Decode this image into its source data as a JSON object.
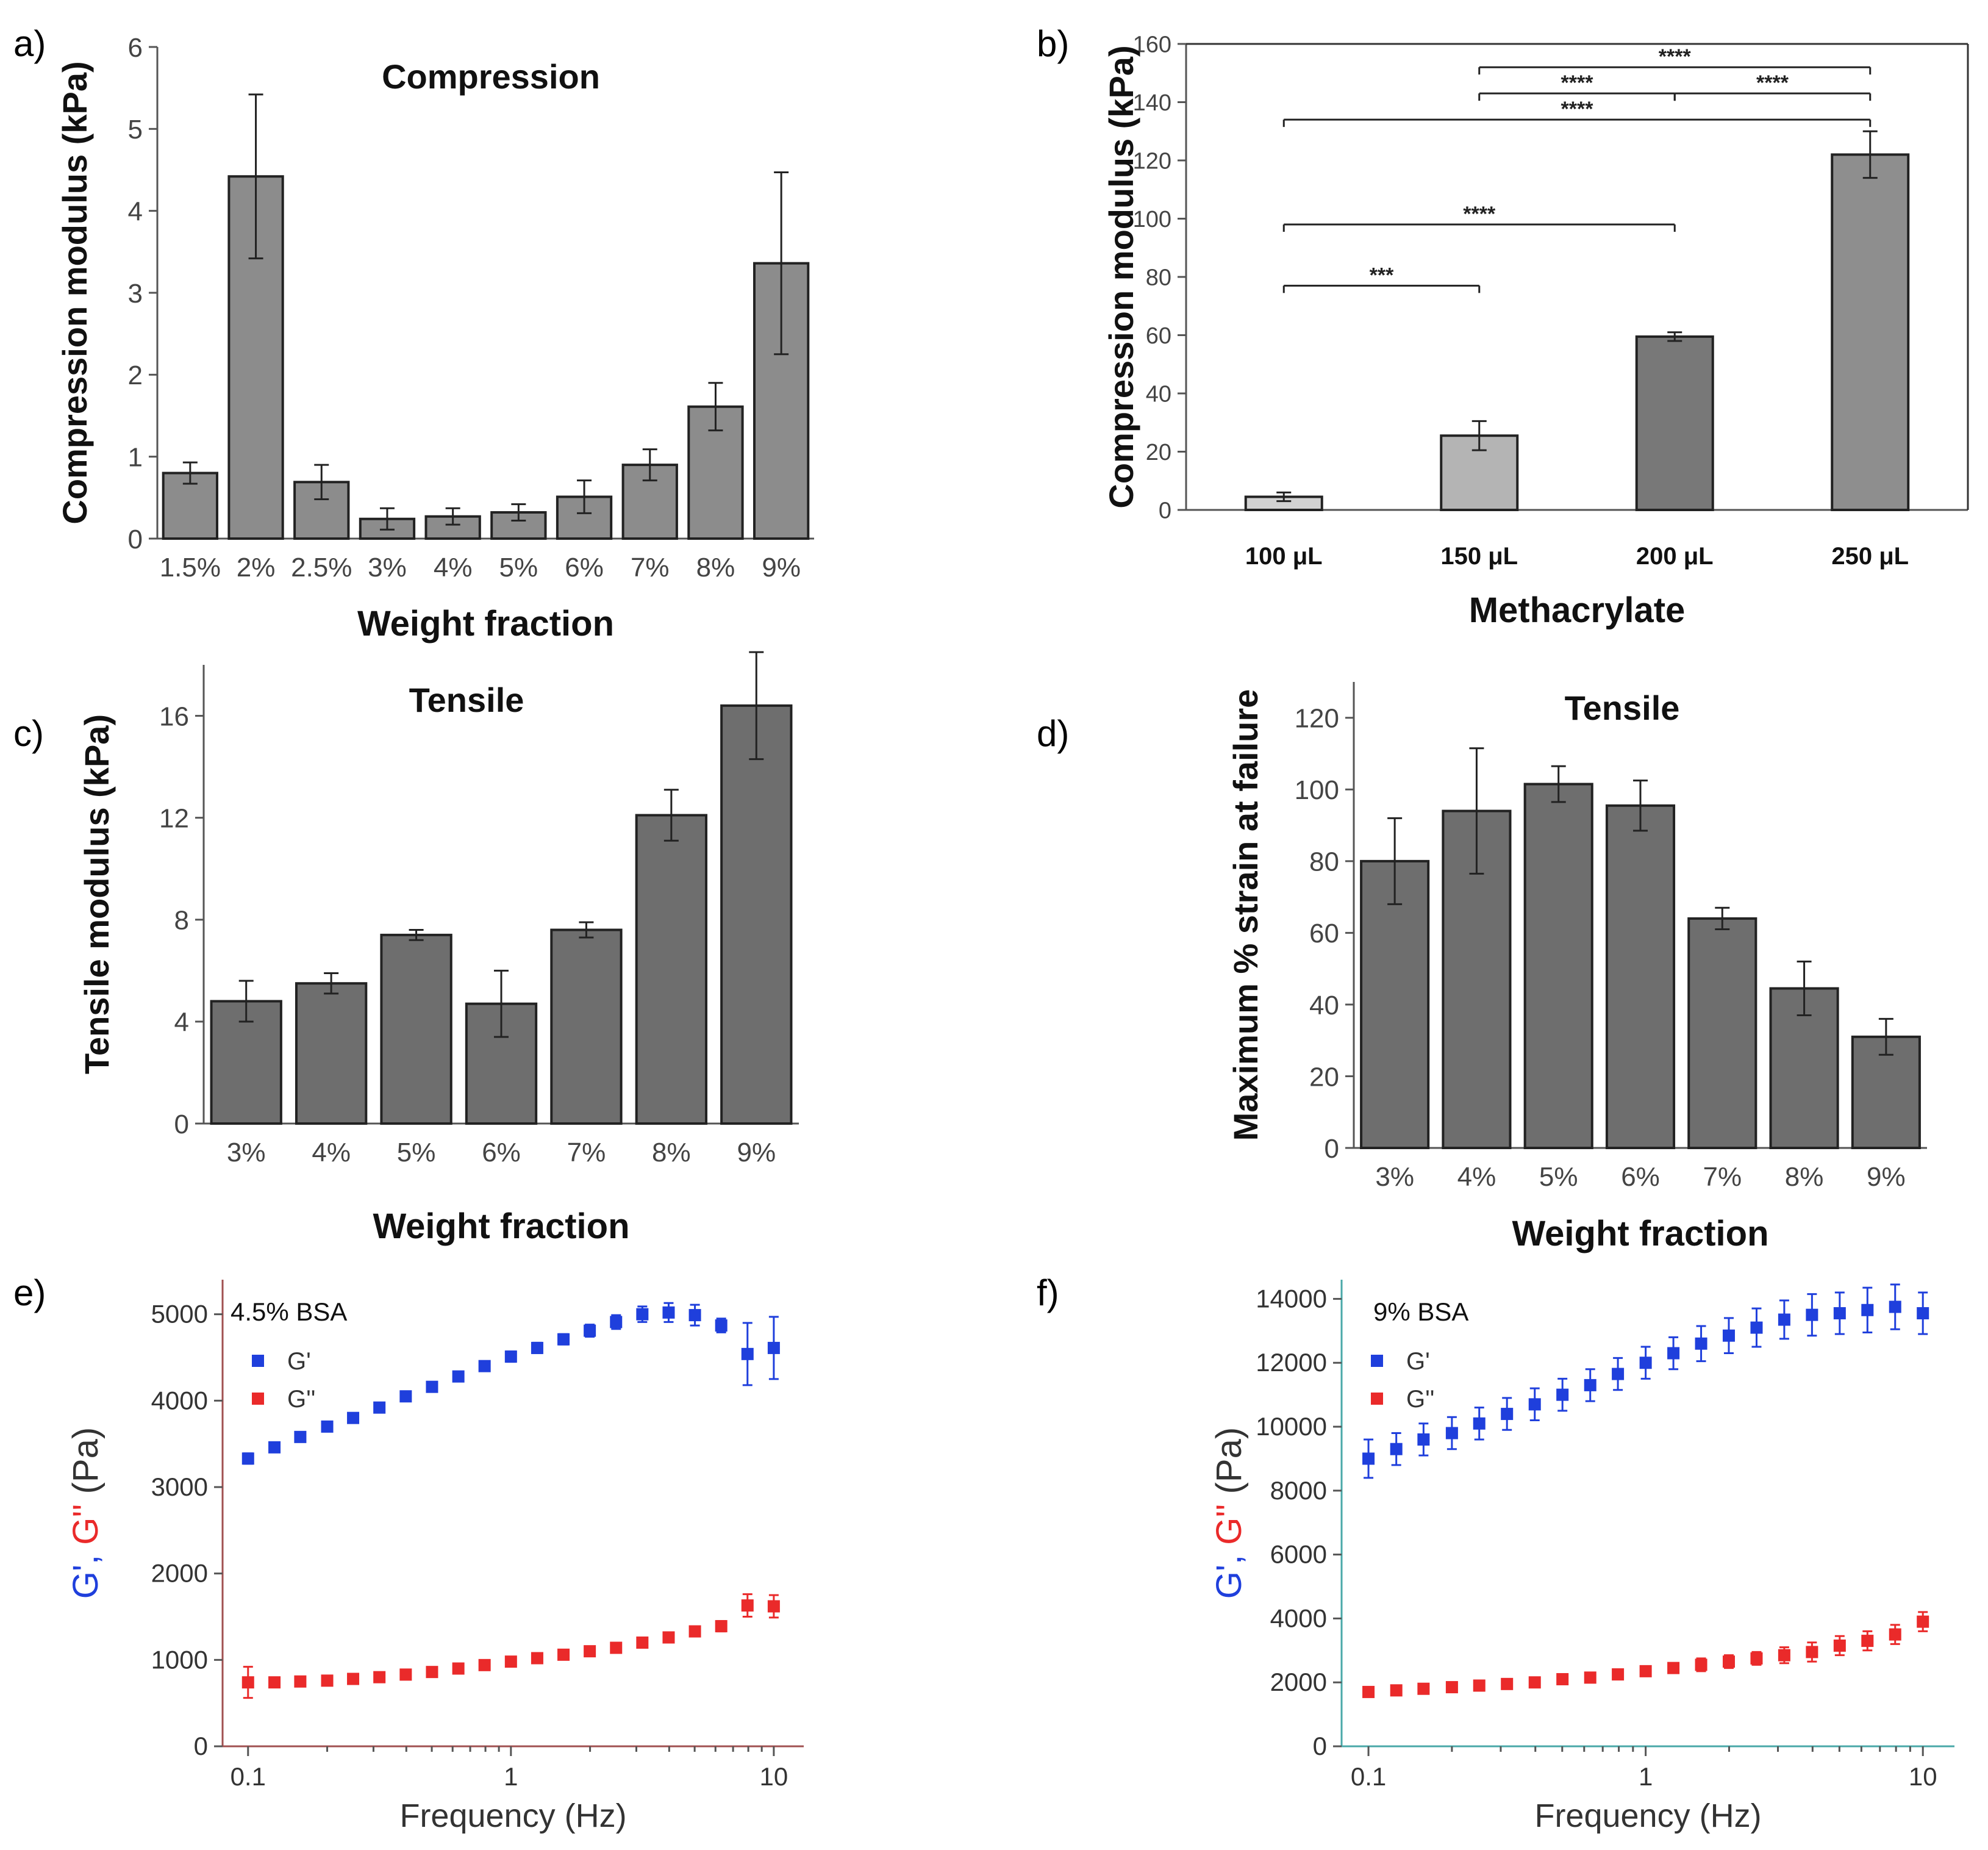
{
  "chart_data": [
    {
      "panel": "a)",
      "type": "bar",
      "title": "Compression",
      "xlabel": "Weight fraction",
      "ylabel": "Compression modulus (kPa)",
      "ylim": [
        0,
        6
      ],
      "yticks": [
        "0",
        "1",
        "2",
        "3",
        "4",
        "5",
        "6"
      ],
      "categories": [
        "1.5%",
        "2%",
        "2.5%",
        "3%",
        "4%",
        "5%",
        "6%",
        "7%",
        "8%",
        "9%"
      ],
      "values": [
        0.8,
        4.42,
        0.69,
        0.24,
        0.27,
        0.32,
        0.51,
        0.9,
        1.61,
        3.36
      ],
      "errors": [
        0.13,
        1.0,
        0.21,
        0.13,
        0.1,
        0.1,
        0.2,
        0.19,
        0.29,
        1.11
      ],
      "bar_color": "#8c8c8c"
    },
    {
      "panel": "b)",
      "type": "bar",
      "title": "",
      "xlabel": "Methacrylate",
      "ylabel": "Compression modulus (kPa)",
      "ylim": [
        0,
        160
      ],
      "yticks": [
        "0",
        "20",
        "40",
        "60",
        "80",
        "100",
        "120",
        "140",
        "160"
      ],
      "categories": [
        "100 μL",
        "150 μL",
        "200 μL",
        "250 μL"
      ],
      "values": [
        4.5,
        25.5,
        59.5,
        122.0
      ],
      "errors": [
        1.5,
        5.0,
        1.5,
        8.0
      ],
      "bar_colors": [
        "#d2d2d2",
        "#b4b4b4",
        "#787878",
        "#8e8e8e"
      ],
      "significance": [
        {
          "from": 0,
          "to": 1,
          "y": 77,
          "label": "***"
        },
        {
          "from": 0,
          "to": 2,
          "y": 98,
          "label": "****"
        },
        {
          "from": 0,
          "to": 3,
          "y": 134,
          "label": "****"
        },
        {
          "from": 1,
          "to": 2,
          "y": 143,
          "label": "****"
        },
        {
          "from": 2,
          "to": 3,
          "y": 143,
          "label": "****"
        },
        {
          "from": 1,
          "to": 3,
          "y": 152,
          "label": "****"
        }
      ]
    },
    {
      "panel": "c)",
      "type": "bar",
      "title": "Tensile",
      "xlabel": "Weight fraction",
      "ylabel": "Tensile modulus (kPa)",
      "ylim": [
        0,
        18
      ],
      "yticks": [
        "0",
        "4",
        "8",
        "12",
        "16"
      ],
      "categories": [
        "3%",
        "4%",
        "5%",
        "6%",
        "7%",
        "8%",
        "9%"
      ],
      "values": [
        4.8,
        5.5,
        7.4,
        4.7,
        7.6,
        12.1,
        16.4
      ],
      "errors": [
        0.8,
        0.4,
        0.2,
        1.3,
        0.3,
        1.0,
        2.1
      ],
      "bar_color": "#6e6e6e"
    },
    {
      "panel": "d)",
      "type": "bar",
      "title": "Tensile",
      "xlabel": "Weight fraction",
      "ylabel": "Maximum % strain at failure",
      "ylim": [
        0,
        130
      ],
      "yticks": [
        "0",
        "20",
        "40",
        "60",
        "80",
        "100",
        "120"
      ],
      "categories": [
        "3%",
        "4%",
        "5%",
        "6%",
        "7%",
        "8%",
        "9%"
      ],
      "values": [
        80,
        94,
        101.5,
        95.5,
        64,
        44.5,
        31
      ],
      "errors": [
        12,
        17.5,
        5,
        7,
        3,
        7.5,
        5
      ],
      "bar_color": "#6e6e6e"
    },
    {
      "panel": "e)",
      "type": "scatter",
      "title": "4.5% BSA",
      "xlabel": "Frequency (Hz)",
      "ylabel_parts": [
        "G'",
        ", ",
        "G''",
        " (Pa)"
      ],
      "xscale": "log",
      "xlim": [
        0.08,
        13
      ],
      "ylim": [
        0,
        5400
      ],
      "xticks": [
        "0.1",
        "1",
        "10"
      ],
      "yticks": [
        "0",
        "1000",
        "2000",
        "3000",
        "4000",
        "5000"
      ],
      "axis_color": "#a05050",
      "legend": [
        "G'",
        "G''"
      ],
      "series": [
        {
          "name": "G'",
          "color": "#1f3fdc",
          "x": [
            0.1,
            0.126,
            0.158,
            0.2,
            0.251,
            0.316,
            0.398,
            0.501,
            0.631,
            0.794,
            1.0,
            1.259,
            1.585,
            1.995,
            2.512,
            3.162,
            3.981,
            5.012,
            6.31,
            7.943,
            10.0
          ],
          "y": [
            3330,
            3460,
            3580,
            3700,
            3800,
            3920,
            4050,
            4160,
            4280,
            4400,
            4510,
            4610,
            4710,
            4810,
            4910,
            5000,
            5020,
            4990,
            4870,
            4540,
            4610
          ],
          "err": [
            60,
            40,
            40,
            40,
            40,
            40,
            40,
            40,
            40,
            50,
            60,
            60,
            60,
            70,
            80,
            90,
            110,
            120,
            80,
            360,
            360
          ]
        },
        {
          "name": "G''",
          "color": "#ea2a2a",
          "x": [
            0.1,
            0.126,
            0.158,
            0.2,
            0.251,
            0.316,
            0.398,
            0.501,
            0.631,
            0.794,
            1.0,
            1.259,
            1.585,
            1.995,
            2.512,
            3.162,
            3.981,
            5.012,
            6.31,
            7.943,
            10.0
          ],
          "y": [
            740,
            740,
            750,
            760,
            780,
            800,
            830,
            860,
            900,
            940,
            980,
            1020,
            1060,
            1100,
            1140,
            1200,
            1260,
            1330,
            1390,
            1630,
            1620
          ],
          "err": [
            180,
            40,
            30,
            30,
            30,
            30,
            30,
            30,
            30,
            30,
            30,
            30,
            30,
            30,
            40,
            40,
            50,
            50,
            60,
            130,
            130
          ]
        }
      ]
    },
    {
      "panel": "f)",
      "type": "scatter",
      "title": "9% BSA",
      "xlabel": "Frequency (Hz)",
      "ylabel_parts": [
        "G'",
        ", ",
        "G''",
        " (Pa)"
      ],
      "xscale": "log",
      "xlim": [
        0.08,
        13
      ],
      "ylim": [
        0,
        14600
      ],
      "xticks": [
        "0.1",
        "1",
        "10"
      ],
      "yticks": [
        "0",
        "2000",
        "4000",
        "6000",
        "8000",
        "10000",
        "12000",
        "14000"
      ],
      "axis_color": "#4aa8a8",
      "legend": [
        "G'",
        "G''"
      ],
      "series": [
        {
          "name": "G'",
          "color": "#1f3fdc",
          "x": [
            0.1,
            0.126,
            0.158,
            0.2,
            0.251,
            0.316,
            0.398,
            0.501,
            0.631,
            0.794,
            1.0,
            1.259,
            1.585,
            1.995,
            2.512,
            3.162,
            3.981,
            5.012,
            6.31,
            7.943,
            10.0
          ],
          "y": [
            9000,
            9300,
            9600,
            9800,
            10100,
            10400,
            10700,
            11000,
            11300,
            11650,
            12000,
            12300,
            12600,
            12850,
            13100,
            13350,
            13500,
            13550,
            13650,
            13750,
            13550
          ],
          "err": [
            600,
            500,
            500,
            500,
            500,
            500,
            500,
            500,
            500,
            500,
            500,
            500,
            550,
            550,
            600,
            600,
            650,
            650,
            700,
            700,
            650
          ]
        },
        {
          "name": "G''",
          "color": "#ea2a2a",
          "x": [
            0.1,
            0.126,
            0.158,
            0.2,
            0.251,
            0.316,
            0.398,
            0.501,
            0.631,
            0.794,
            1.0,
            1.259,
            1.585,
            1.995,
            2.512,
            3.162,
            3.981,
            5.012,
            6.31,
            7.943,
            10.0
          ],
          "y": [
            1700,
            1750,
            1800,
            1850,
            1900,
            1950,
            2000,
            2100,
            2150,
            2250,
            2350,
            2450,
            2550,
            2650,
            2750,
            2850,
            2950,
            3150,
            3300,
            3500,
            3900
          ],
          "err": [
            100,
            100,
            100,
            100,
            100,
            100,
            100,
            100,
            120,
            120,
            150,
            150,
            200,
            200,
            200,
            250,
            300,
            300,
            300,
            300,
            300
          ]
        }
      ]
    }
  ]
}
